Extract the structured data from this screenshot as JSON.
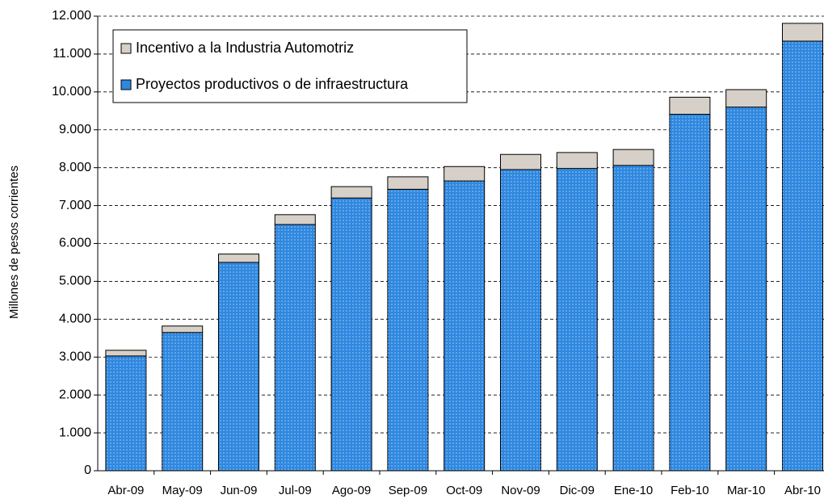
{
  "chart_data": {
    "type": "stacked-bar",
    "y_label": "Millones de pesos corrientes",
    "categories": [
      "Abr-09",
      "May-09",
      "Jun-09",
      "Jul-09",
      "Ago-09",
      "Sep-09",
      "Oct-09",
      "Nov-09",
      "Dic-09",
      "Ene-10",
      "Feb-10",
      "Mar-10",
      "Abr-10"
    ],
    "series": [
      {
        "name": "Proyectos productivos o de infraestructura",
        "color": "#2f88e0",
        "values": [
          3030,
          3650,
          5500,
          6500,
          7200,
          7430,
          7650,
          7950,
          7980,
          8060,
          9410,
          9600,
          11340
        ]
      },
      {
        "name": "Incentivo a la Industria Automotriz",
        "color": "#d6d0c8",
        "values": [
          150,
          170,
          220,
          260,
          300,
          330,
          380,
          400,
          420,
          420,
          450,
          460,
          470
        ]
      }
    ],
    "ylim": [
      0,
      12000
    ],
    "yticks": [
      0,
      {
        "value": 1000,
        "label": "1.000"
      },
      {
        "value": 2000,
        "label": "2.000"
      },
      {
        "value": 3000,
        "label": "3.000"
      },
      {
        "value": 4000,
        "label": "4.000"
      },
      {
        "value": 5000,
        "label": "5.000"
      },
      {
        "value": 6000,
        "label": "6.000"
      },
      {
        "value": 7000,
        "label": "7.000"
      },
      {
        "value": 8000,
        "label": "8.000"
      },
      {
        "value": 9000,
        "label": "9.000"
      },
      {
        "value": 10000,
        "label": "10.000"
      },
      {
        "value": 11000,
        "label": "11.000"
      },
      {
        "value": 12000,
        "label": "12.000"
      }
    ],
    "grid": true
  }
}
